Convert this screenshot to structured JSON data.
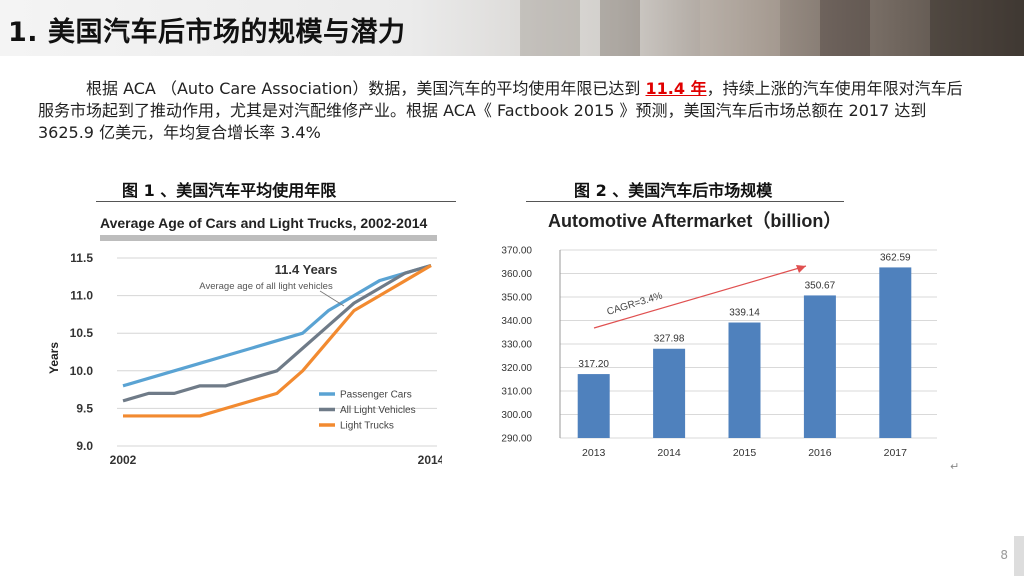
{
  "header": {
    "title": "1. 美国汽车后市场的规模与潜力"
  },
  "paragraph": {
    "part1": "根据 ACA （Auto Care Association）数据，美国汽车的平均使用年限已达到 ",
    "highlight": "11.4 年",
    "part2": "，持续上涨的汽车使用年限对汽车后服务市场起到了推动作用，尤其是对汽配维修产业。根据 ACA《 Factbook 2015 》预测，美国汽车后市场总额在 2017 达到 3625.9 亿美元，年均复合增长率 3.4%"
  },
  "figure_titles": {
    "fig1": "图 1 、美国汽车平均使用年限",
    "fig2": "图 2 、美国汽车后市场规模"
  },
  "page_number": "8",
  "return_mark": "↵",
  "chart_data": [
    {
      "type": "line",
      "title": "Average Age of Cars and Light Trucks, 2002-2014",
      "ylabel": "Years",
      "xlabel": "",
      "x_tick_labels": [
        "2002",
        "2014"
      ],
      "y_tick_labels": [
        "9.0",
        "9.5",
        "10.0",
        "10.5",
        "11.0",
        "11.5"
      ],
      "ylim": [
        9.0,
        11.5
      ],
      "xlim": [
        2002,
        2014
      ],
      "annotation": {
        "title": "11.4 Years",
        "subtitle": "Average age of all light vehicles"
      },
      "legend_position": "bottom-right",
      "series": [
        {
          "name": "Passenger Cars",
          "color": "#5aa3d3",
          "x": [
            2002,
            2003,
            2004,
            2005,
            2006,
            2007,
            2008,
            2009,
            2010,
            2011,
            2012,
            2013,
            2014
          ],
          "values": [
            9.8,
            9.9,
            10.0,
            10.1,
            10.2,
            10.3,
            10.4,
            10.5,
            10.8,
            11.0,
            11.2,
            11.3,
            11.4
          ]
        },
        {
          "name": "All Light Vehicles",
          "color": "#6f7b88",
          "x": [
            2002,
            2003,
            2004,
            2005,
            2006,
            2007,
            2008,
            2009,
            2010,
            2011,
            2012,
            2013,
            2014
          ],
          "values": [
            9.6,
            9.7,
            9.7,
            9.8,
            9.8,
            9.9,
            10.0,
            10.3,
            10.6,
            10.9,
            11.1,
            11.3,
            11.4
          ]
        },
        {
          "name": "Light Trucks",
          "color": "#f28a30",
          "x": [
            2002,
            2003,
            2004,
            2005,
            2006,
            2007,
            2008,
            2009,
            2010,
            2011,
            2012,
            2013,
            2014
          ],
          "values": [
            9.4,
            9.4,
            9.4,
            9.4,
            9.5,
            9.6,
            9.7,
            10.0,
            10.4,
            10.8,
            11.0,
            11.2,
            11.4
          ]
        }
      ]
    },
    {
      "type": "bar",
      "title": "Automotive Aftermarket（billion）",
      "categories": [
        "2013",
        "2014",
        "2015",
        "2016",
        "2017"
      ],
      "values": [
        317.2,
        327.98,
        339.14,
        350.67,
        362.59
      ],
      "value_labels": [
        "317.20",
        "327.98",
        "339.14",
        "350.67",
        "362.59"
      ],
      "ylim": [
        290,
        370
      ],
      "y_tick_labels": [
        "290.00",
        "300.00",
        "310.00",
        "320.00",
        "330.00",
        "340.00",
        "350.00",
        "360.00",
        "370.00"
      ],
      "bar_color": "#4f81bd",
      "annotation": "CAGR=3.4%",
      "grid": true
    }
  ]
}
